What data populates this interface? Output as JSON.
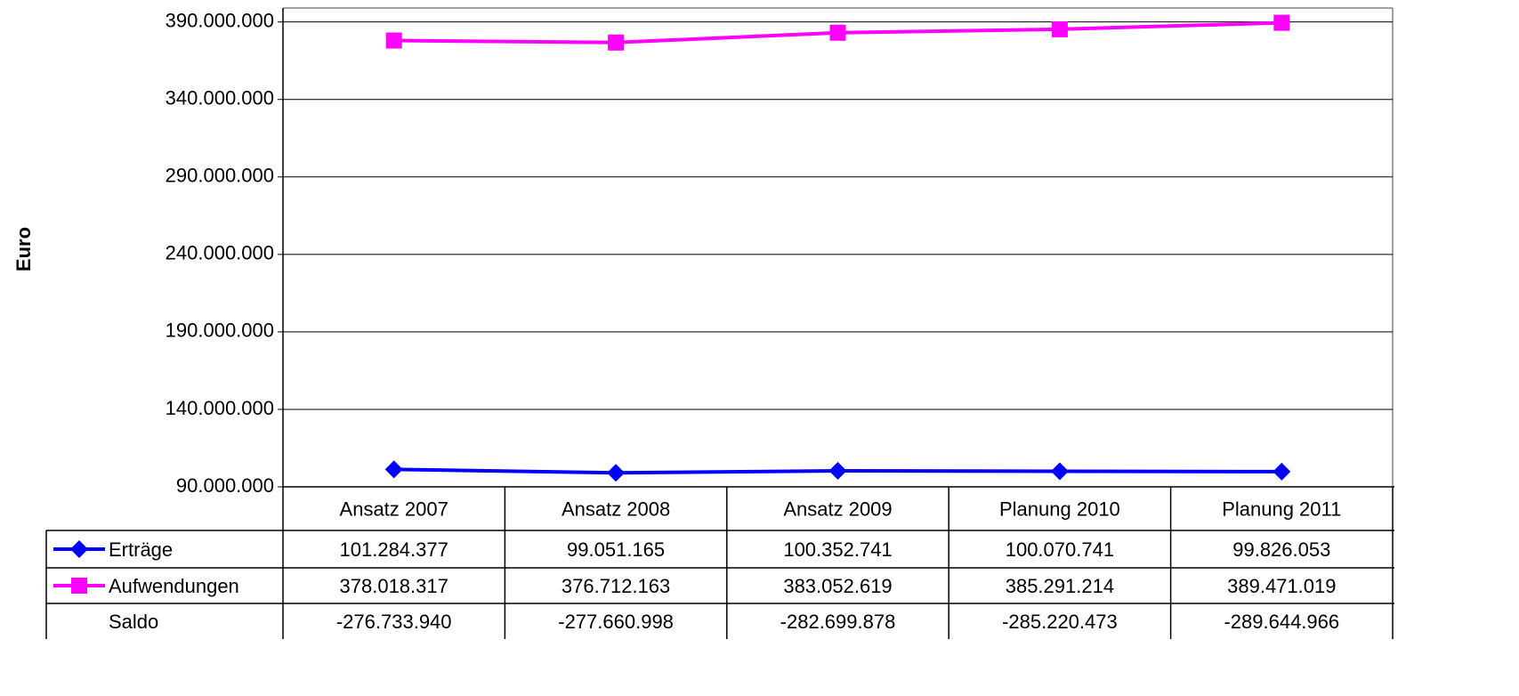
{
  "chart_data": {
    "type": "line",
    "y_label": "Euro",
    "categories": [
      "Ansatz 2007",
      "Ansatz 2008",
      "Ansatz 2009",
      "Planung 2010",
      "Planung 2011"
    ],
    "series": [
      {
        "name": "Erträge",
        "color": "#0000ff",
        "marker": "diamond",
        "values": [
          101284377,
          99051165,
          100352741,
          100070741,
          99826053
        ],
        "value_labels": [
          "101.284.377",
          "99.051.165",
          "100.352.741",
          "100.070.741",
          "99.826.053"
        ]
      },
      {
        "name": "Aufwendungen",
        "color": "#ff00ff",
        "marker": "square",
        "values": [
          378018317,
          376712163,
          383052619,
          385291214,
          389471019
        ],
        "value_labels": [
          "378.018.317",
          "376.712.163",
          "383.052.619",
          "385.291.214",
          "389.471.019"
        ]
      },
      {
        "name": "Saldo",
        "values": [
          -276733940,
          -277660998,
          -282699878,
          -285220473,
          -289644966
        ],
        "value_labels": [
          "-276.733.940",
          "-277.660.998",
          "-282.699.878",
          "-285.220.473",
          "-289.644.966"
        ]
      }
    ],
    "ylim": [
      90000000,
      399000000
    ],
    "yticks": [
      {
        "value": 90000000,
        "label": "90.000.000"
      },
      {
        "value": 140000000,
        "label": "140.000.000"
      },
      {
        "value": 190000000,
        "label": "190.000.000"
      },
      {
        "value": 240000000,
        "label": "240.000.000"
      },
      {
        "value": 290000000,
        "label": "290.000.000"
      },
      {
        "value": 340000000,
        "label": "340.000.000"
      },
      {
        "value": 390000000,
        "label": "390.000.000"
      }
    ],
    "grid": true
  }
}
